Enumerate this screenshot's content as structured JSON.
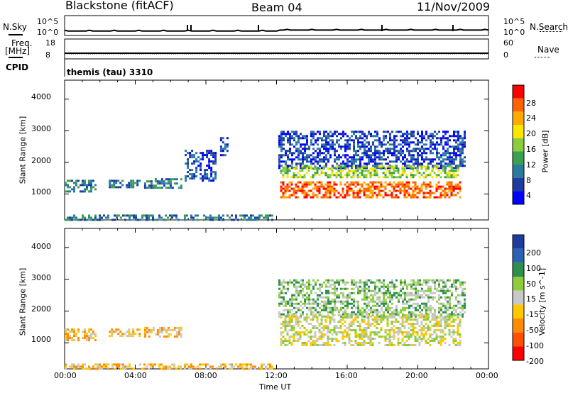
{
  "header": {
    "station": "Blackstone (fitACF)",
    "beam": "Beam 04",
    "date": "11/Nov/2009"
  },
  "strips": {
    "noise": {
      "left_label": "N.Sky",
      "right_label": "N.Search",
      "left_ticks": [
        "10^5",
        "10^0"
      ],
      "right_ticks": [
        "10^5",
        "10^0"
      ]
    },
    "freq": {
      "left_label_1": "Freq.",
      "left_label_2": "[MHz]",
      "right_label": "Nave",
      "left_ticks": [
        "18",
        "8"
      ],
      "right_ticks": [
        "60",
        "0"
      ]
    },
    "cpid": {
      "label": "CPID",
      "value": "themis (tau) 3310"
    }
  },
  "colors": {
    "power_bar": [
      "#0000ff",
      "#1e3ca0",
      "#2a7aa0",
      "#3aa050",
      "#8ccd3c",
      "#ffe600",
      "#ffaa00",
      "#ff6400",
      "#ff0000"
    ],
    "velocity_bar": [
      "#1e3ca0",
      "#2a62b4",
      "#2d8f4e",
      "#8ccd3c",
      "#c8c8c8",
      "#ffc800",
      "#ff8c00",
      "#ff5000",
      "#ff0000"
    ]
  },
  "chart_data": [
    {
      "type": "heatmap",
      "title": "Power",
      "ylabel": "Slant Range [km]",
      "ylim": [
        180,
        4600
      ],
      "yticks": [
        "1000",
        "2000",
        "3000",
        "4000"
      ],
      "xlim": [
        0,
        24
      ],
      "colorbar": {
        "label": "Power [dB]",
        "ticks": [
          "4",
          "8",
          "12",
          "16",
          "20",
          "24",
          "28"
        ],
        "range": [
          0,
          32
        ]
      },
      "bands": [
        {
          "x": [
            0.0,
            1.8
          ],
          "y": [
            1100,
            1450
          ],
          "level": 2
        },
        {
          "x": [
            2.5,
            4.2
          ],
          "y": [
            1200,
            1450
          ],
          "level": 2
        },
        {
          "x": [
            4.5,
            6.6
          ],
          "y": [
            1200,
            1500
          ],
          "level": 2
        },
        {
          "x": [
            6.8,
            8.5
          ],
          "y": [
            1450,
            2400
          ],
          "level": 1
        },
        {
          "x": [
            8.8,
            9.2
          ],
          "y": [
            2200,
            2800
          ],
          "level": 1
        },
        {
          "x": [
            0.0,
            11.8
          ],
          "y": [
            200,
            350
          ],
          "level": 2
        },
        {
          "x": [
            12.1,
            22.6
          ],
          "y": [
            1800,
            3000
          ],
          "level": 1
        },
        {
          "x": [
            12.2,
            22.4
          ],
          "y": [
            1500,
            1900
          ],
          "level": 4
        },
        {
          "x": [
            12.2,
            22.4
          ],
          "y": [
            900,
            1400
          ],
          "level": 7
        }
      ]
    },
    {
      "type": "heatmap",
      "title": "Velocity",
      "ylabel": "Slant Range [km]",
      "ylim": [
        180,
        4600
      ],
      "yticks": [
        "1000",
        "2000",
        "3000",
        "4000"
      ],
      "xlim": [
        0,
        24
      ],
      "xticks": [
        "00:00",
        "04:00",
        "08:00",
        "12:00",
        "16:00",
        "20:00",
        "00:00"
      ],
      "xlabel": "Time UT",
      "colorbar": {
        "label": "Velocity [m s^-1]",
        "ticks": [
          "200",
          "100",
          "50",
          "15",
          "-15",
          "-50",
          "-100",
          "-200"
        ]
      },
      "bands": [
        {
          "x": [
            0.0,
            1.8
          ],
          "y": [
            1100,
            1450
          ],
          "level": 5
        },
        {
          "x": [
            2.5,
            4.2
          ],
          "y": [
            1200,
            1450
          ],
          "level": 5
        },
        {
          "x": [
            4.5,
            6.6
          ],
          "y": [
            1200,
            1500
          ],
          "level": 5
        },
        {
          "x": [
            0.0,
            11.8
          ],
          "y": [
            200,
            350
          ],
          "level": 5
        },
        {
          "x": [
            12.1,
            22.6
          ],
          "y": [
            1800,
            3000
          ],
          "level": 3
        },
        {
          "x": [
            12.2,
            22.4
          ],
          "y": [
            900,
            1900
          ],
          "level": 4
        }
      ]
    }
  ]
}
